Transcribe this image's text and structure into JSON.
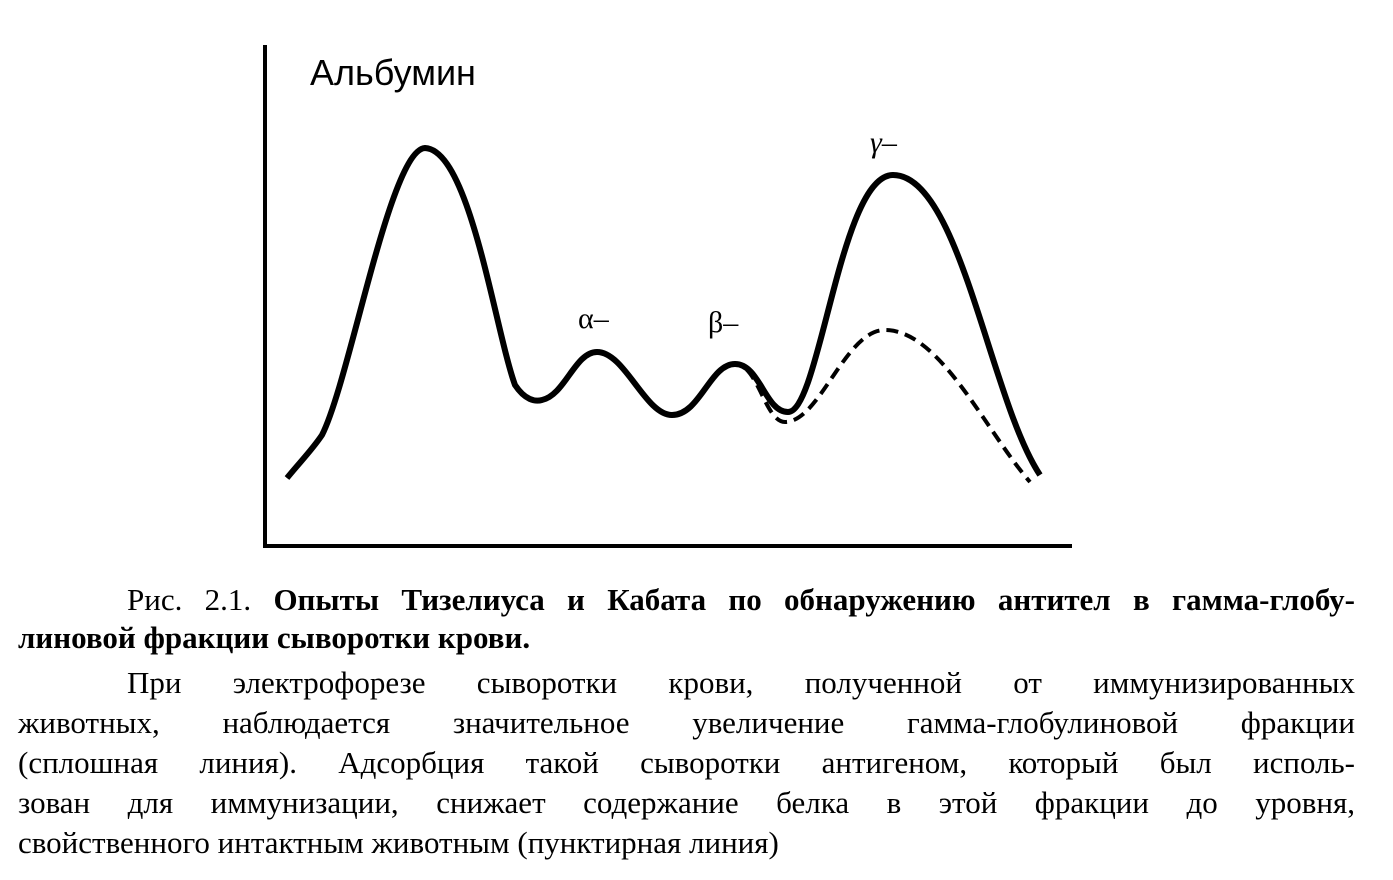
{
  "figure": {
    "labels": {
      "albumin": "Альбумин",
      "alpha": "α–",
      "beta": "β–",
      "gamma": "γ–"
    }
  },
  "caption": {
    "label": "Рис. 2.1.",
    "title_lines": [
      "Опыты Тизелиуса и Кабата по обнаружению антител в гамма-глобу-",
      "линовой фракции сыворотки крови."
    ]
  },
  "paragraph": {
    "lines": [
      "При электрофорезе сыворотки крови, полученной от иммунизированных",
      "животных, наблюдается значительное увеличение гамма-глобулиновой фракции",
      "(сплошная линия). Адсорбция такой сыворотки антигеном, который был исполь-",
      "зован для иммунизации, снижает содержание белка в этой фракции до уровня,",
      "свойственного интактным животным (пунктирная линия)"
    ]
  }
}
